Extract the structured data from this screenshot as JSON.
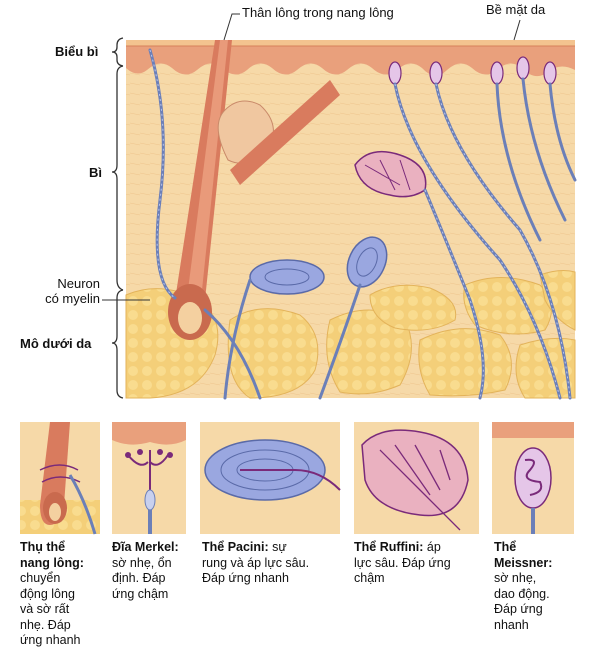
{
  "labels": {
    "hair_shaft": "Thân lông trong nang lông",
    "skin_surface": "Bề mặt da",
    "epidermis": "Biểu bì",
    "dermis": "Bì",
    "myelinated_neuron_line1": "Neuron",
    "myelinated_neuron_line2": "có myelin",
    "hypodermis": "Mô dưới da"
  },
  "receptors": [
    {
      "name": "Thụ thể nang lông:",
      "name_lines": [
        "Thụ thể",
        "nang lông:"
      ],
      "desc_lines": [
        "chuyển",
        "động lông",
        "và sờ rất",
        "nhẹ. Đáp",
        "ứng nhanh"
      ]
    },
    {
      "name": "Đĩa Merkel:",
      "desc_lines": [
        "sờ nhẹ, ổn",
        "định. Đáp",
        "ứng chậm"
      ]
    },
    {
      "name": "Thể Pacini:",
      "desc_lines": [
        "sự",
        "rung và áp lực sâu.",
        "Đáp ứng nhanh"
      ]
    },
    {
      "name": "Thể Ruffini:",
      "desc_lines": [
        "áp",
        "lực sâu. Đáp ứng",
        "chậm"
      ]
    },
    {
      "name": "Thể Meissner:",
      "name_lines": [
        "Thể",
        "Meissner:"
      ],
      "desc_lines": [
        "sờ nhẹ,",
        "dao động.",
        "Đáp ứng",
        "nhanh"
      ]
    }
  ],
  "colors": {
    "dermis": "#f6d9a8",
    "epidermis": "#e9a07c",
    "fat": "#f7d27a",
    "nerve": "#6b7fb8",
    "capsule": "#9aa7e0",
    "ruffini": "#7a2a7a",
    "bracket": "#333333"
  }
}
